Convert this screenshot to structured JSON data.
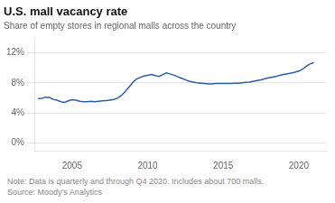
{
  "chart_data": {
    "type": "line",
    "title": "U.S. mall vacancy rate",
    "subtitle": "Share of empty stores in regional malls across the country",
    "annotations": [
      "Note: Data is quarterly and through Q4 2020. Includes about 700 malls.",
      "Source: Moody’s Analytics"
    ],
    "color": "#2a5fa5",
    "grid": "y",
    "xlim": [
      2002.5,
      2021.8
    ],
    "xticks": [
      2005,
      2010,
      2015,
      2020
    ],
    "ylim": [
      -1.0,
      14.0
    ],
    "yticks": [
      {
        "value": 0,
        "label": "0%"
      },
      {
        "value": 4,
        "label": "4%"
      },
      {
        "value": 8,
        "label": "8%"
      },
      {
        "value": 12,
        "label": "12%"
      }
    ],
    "x": [
      2002.75,
      2003.0,
      2003.25,
      2003.5,
      2003.75,
      2004.0,
      2004.25,
      2004.5,
      2004.75,
      2005.0,
      2005.25,
      2005.5,
      2005.75,
      2006.0,
      2006.25,
      2006.5,
      2006.75,
      2007.0,
      2007.25,
      2007.5,
      2007.75,
      2008.0,
      2008.25,
      2008.5,
      2008.75,
      2009.0,
      2009.25,
      2009.5,
      2009.75,
      2010.0,
      2010.25,
      2010.5,
      2010.75,
      2011.0,
      2011.25,
      2011.5,
      2011.75,
      2012.0,
      2012.25,
      2012.5,
      2012.75,
      2013.0,
      2013.25,
      2013.5,
      2013.75,
      2014.0,
      2014.25,
      2014.5,
      2014.75,
      2015.0,
      2015.25,
      2015.5,
      2015.75,
      2016.0,
      2016.25,
      2016.5,
      2016.75,
      2017.0,
      2017.25,
      2017.5,
      2017.75,
      2018.0,
      2018.25,
      2018.5,
      2018.75,
      2019.0,
      2019.25,
      2019.5,
      2019.75,
      2020.0,
      2020.25,
      2020.5,
      2020.75,
      2021.0
    ],
    "values": [
      5.9,
      5.95,
      6.1,
      6.05,
      5.8,
      5.7,
      5.5,
      5.4,
      5.6,
      5.75,
      5.7,
      5.55,
      5.5,
      5.5,
      5.55,
      5.5,
      5.55,
      5.6,
      5.65,
      5.7,
      5.8,
      5.95,
      6.3,
      6.8,
      7.4,
      8.0,
      8.5,
      8.7,
      8.9,
      9.0,
      9.1,
      8.95,
      8.85,
      9.1,
      9.3,
      9.15,
      9.0,
      8.8,
      8.6,
      8.4,
      8.2,
      8.1,
      8.0,
      7.95,
      7.9,
      7.85,
      7.85,
      7.9,
      7.9,
      7.9,
      7.9,
      7.9,
      7.95,
      7.95,
      8.0,
      8.05,
      8.1,
      8.2,
      8.3,
      8.4,
      8.55,
      8.65,
      8.75,
      8.85,
      9.0,
      9.1,
      9.2,
      9.3,
      9.4,
      9.55,
      9.8,
      10.2,
      10.5,
      10.7
    ]
  }
}
